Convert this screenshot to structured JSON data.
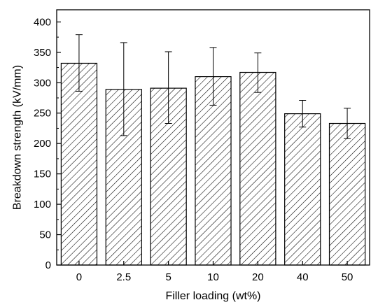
{
  "chart_data": {
    "type": "bar",
    "title": "",
    "xlabel": "Filler loading (wt%)",
    "ylabel": "Breakdown strength (kV/mm)",
    "categories": [
      "0",
      "2.5",
      "5",
      "10",
      "20",
      "40",
      "50"
    ],
    "series": [
      {
        "values": [
          332,
          289,
          291,
          310,
          317,
          249,
          233
        ],
        "error_low": [
          286,
          213,
          233,
          263,
          284,
          227,
          208
        ],
        "error_high": [
          379,
          366,
          351,
          358,
          349,
          271,
          258
        ]
      }
    ],
    "ylim": [
      0,
      420
    ],
    "yticks": [
      0,
      50,
      100,
      150,
      200,
      250,
      300,
      350,
      400
    ],
    "grid": false,
    "bar_fill": "diagonal-hatch",
    "bar_edge_color": "#000000",
    "legend": "none"
  }
}
